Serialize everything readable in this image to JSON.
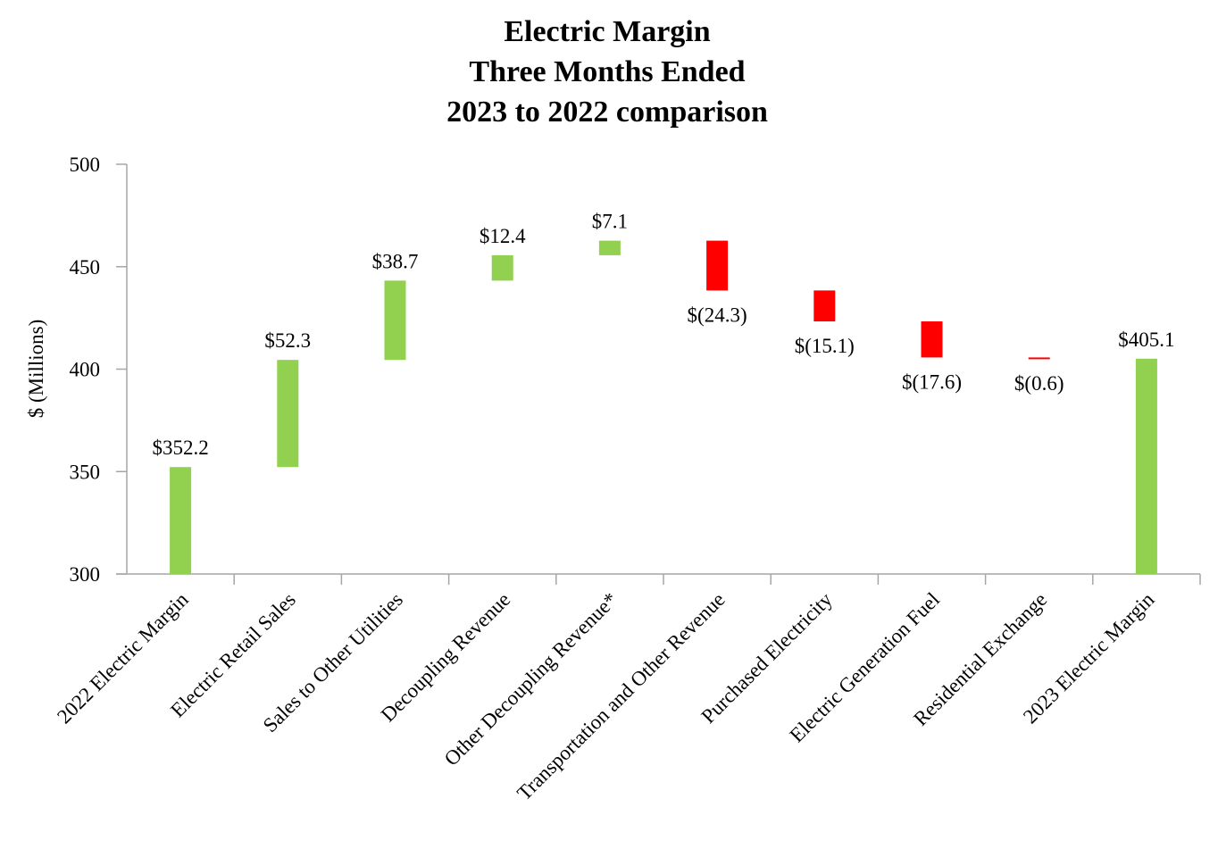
{
  "chart_data": {
    "type": "bar",
    "subtype": "waterfall",
    "title": [
      "Electric Margin",
      "Three Months Ended",
      "2023 to 2022 comparison"
    ],
    "xlabel": "",
    "ylabel": "$ (Millions)",
    "ylim": [
      300,
      500
    ],
    "yticks": [
      300,
      350,
      400,
      450,
      500
    ],
    "grid": false,
    "colors": {
      "increase": "#92d050",
      "decrease": "#ff0000",
      "total": "#92d050",
      "axis": "#a6a6a6",
      "text": "#000000"
    },
    "categories": [
      "2022 Electric Margin",
      "Electric Retail Sales",
      "Sales to Other Utilities",
      "Decoupling Revenue",
      "Other Decoupling Revenue*",
      "Transportation and Other Revenue",
      "Purchased Electricity",
      "Electric Generation Fuel",
      "Residential Exchange",
      "2023 Electric Margin"
    ],
    "values": [
      352.2,
      52.3,
      38.7,
      12.4,
      7.1,
      -24.3,
      -15.1,
      -17.6,
      -0.6,
      405.1
    ],
    "kinds": [
      "total",
      "increase",
      "increase",
      "increase",
      "increase",
      "decrease",
      "decrease",
      "decrease",
      "decrease",
      "total"
    ],
    "data_labels": [
      "$352.2",
      "$52.3",
      "$38.7",
      "$12.4",
      "$7.1",
      "$(24.3)",
      "$(15.1)",
      "$(17.6)",
      "$(0.6)",
      "$405.1"
    ]
  }
}
